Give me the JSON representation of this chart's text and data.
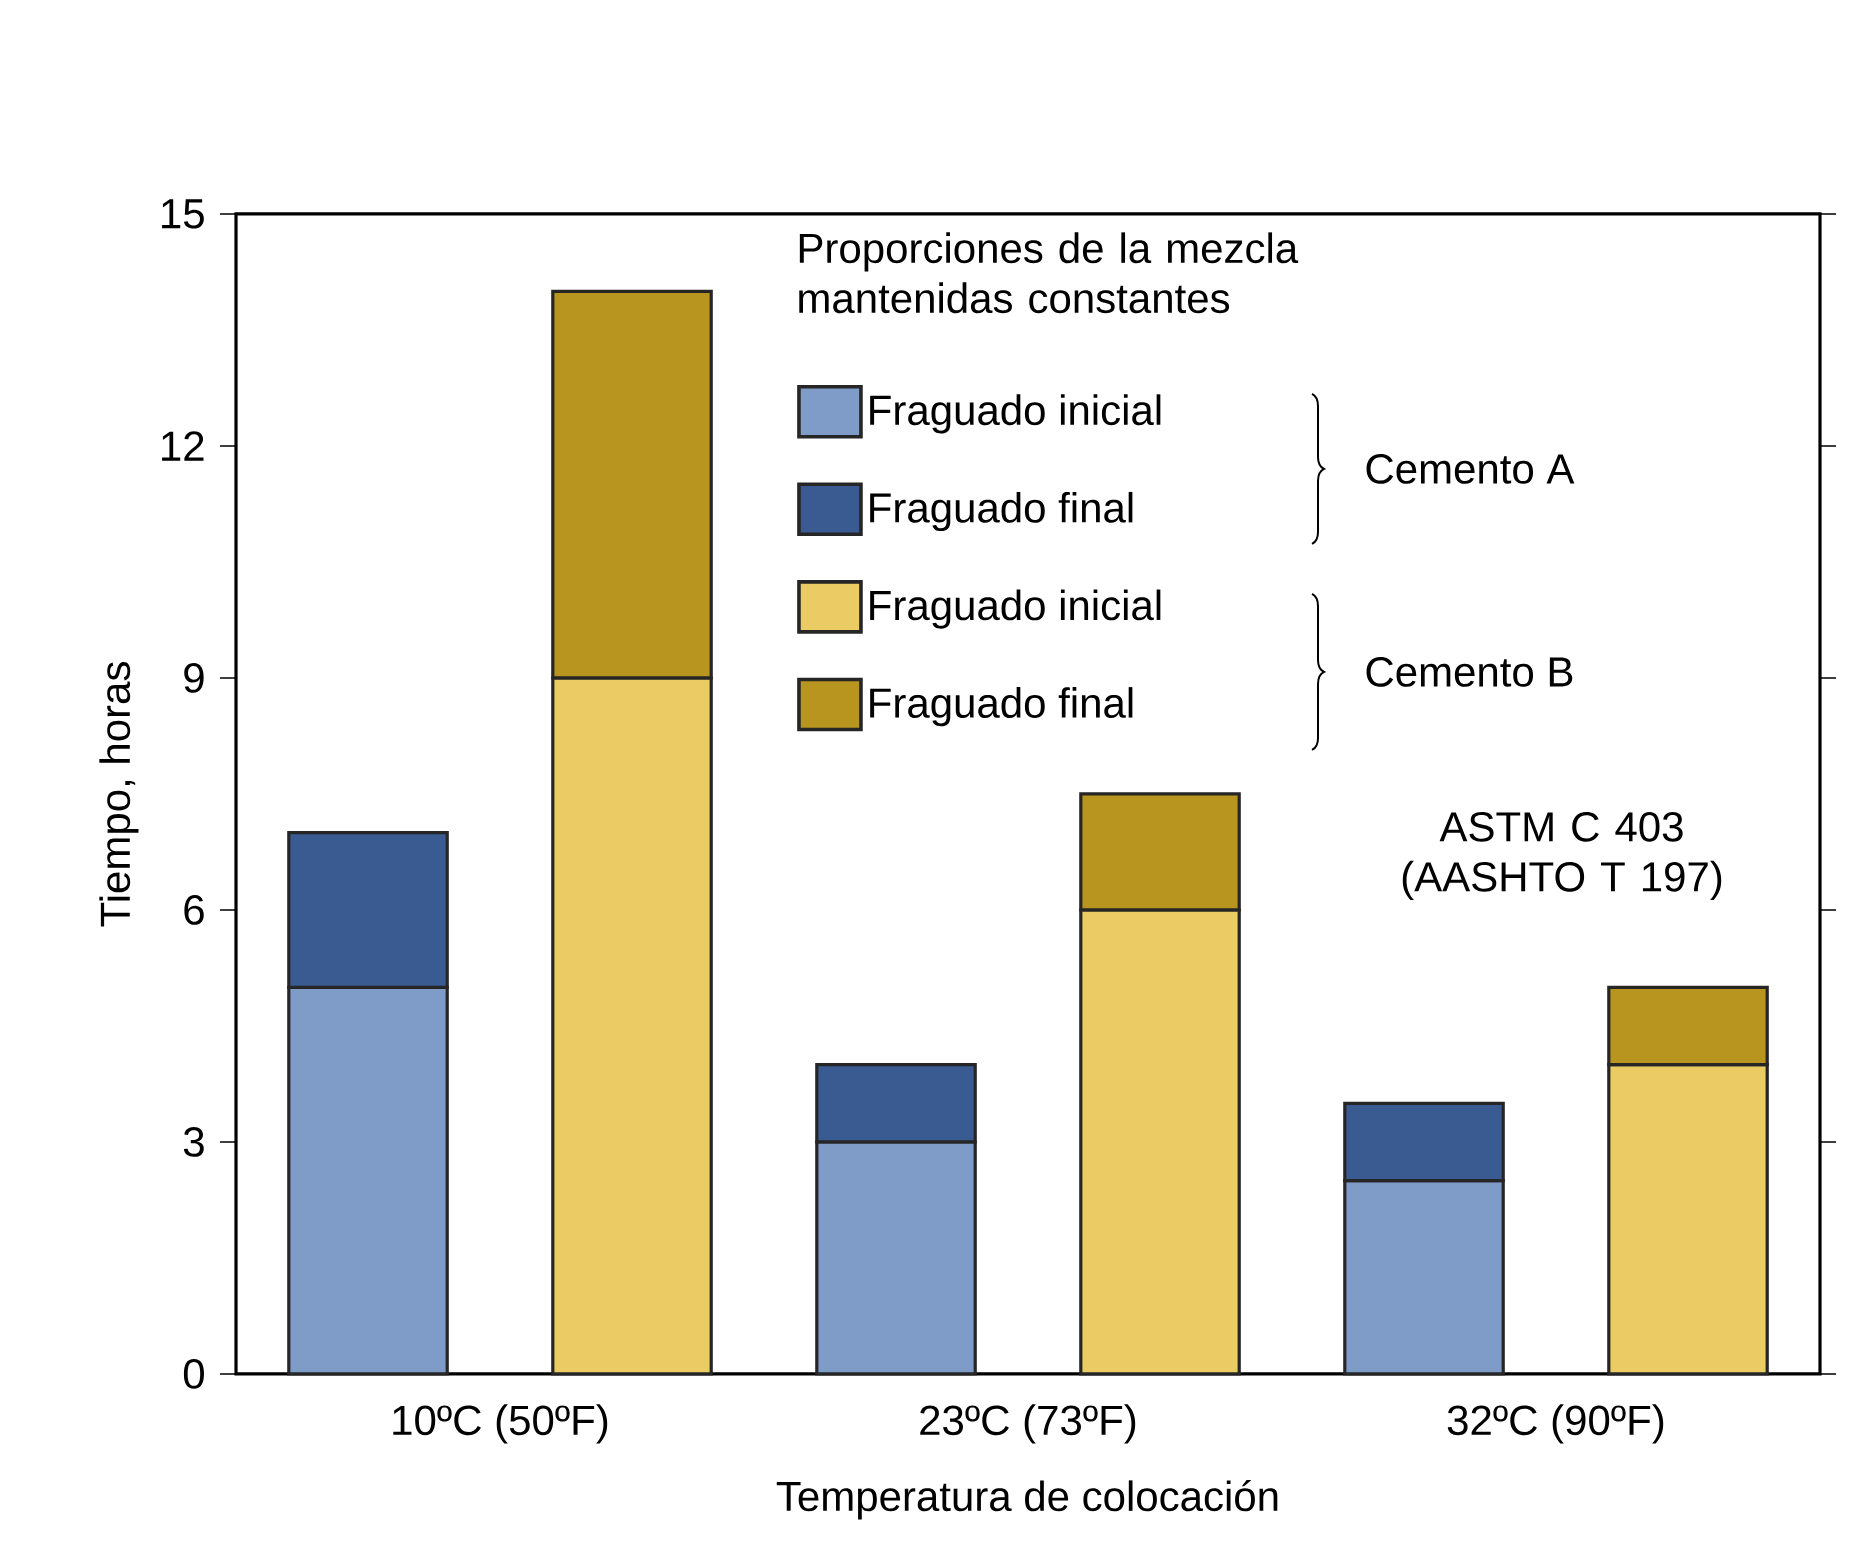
{
  "chart_data": {
    "type": "bar",
    "stacked": true,
    "xlabel": "Temperatura de colocación",
    "ylabel": "Tiempo, horas",
    "legend_title": "Proporciones de la mezcla mantenidas constantes",
    "legend": "top",
    "categories": [
      "10ºC (50ºF)",
      null,
      "23ºC (73ºF)",
      null,
      "32ºC (90ºF)",
      null
    ],
    "series": [
      {
        "name": "Fraguado inicial",
        "color": "#7f9cc9",
        "values": [
          5,
          null,
          3,
          null,
          2.5,
          null
        ]
      },
      {
        "name": "Fraguado final",
        "color": "#3a5b91",
        "values": [
          2,
          null,
          1,
          null,
          1,
          null
        ]
      },
      {
        "name": "Fraguado inicial",
        "color": "#ebcb63",
        "values": [
          null,
          9,
          null,
          6,
          null,
          4
        ]
      },
      {
        "name": "Fraguado final",
        "color": "#b8951e",
        "values": [
          null,
          5,
          null,
          1.5,
          null,
          1
        ]
      }
    ],
    "annotations": [
      "Cemento A",
      "Cemento B",
      "ASTM C 403 (AASHTO T 197)"
    ],
    "ylim": [
      0,
      15
    ],
    "yticks": [
      0,
      3,
      6,
      9,
      12,
      15
    ],
    "grid": false
  }
}
